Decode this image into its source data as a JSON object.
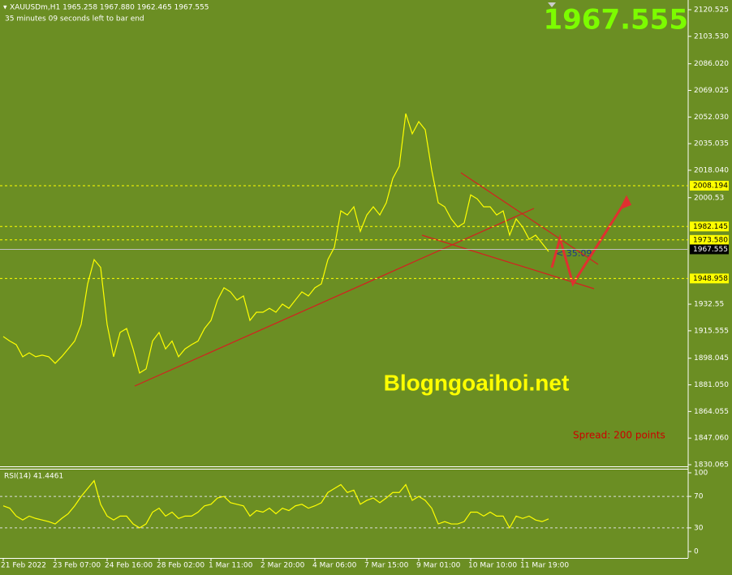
{
  "chart_data": [
    {
      "type": "line",
      "title": "XAUUSDm,H1  1965.258 1967.880 1962.465 1967.555",
      "subtitle": "35 minutes 09 seconds left to bar end",
      "color": "#ffff00",
      "values": [
        1911.9,
        1909,
        1906.7,
        1899,
        1901.5,
        1899,
        1900,
        1899,
        1894.8,
        1899,
        1904,
        1909,
        1919.6,
        1945.5,
        1961,
        1956,
        1919.6,
        1899,
        1914.5,
        1917,
        1904,
        1888.6,
        1891.2,
        1909,
        1914.5,
        1904,
        1909,
        1899,
        1904,
        1906.7,
        1909,
        1917,
        1922.2,
        1935.2,
        1943,
        1940.4,
        1935.2,
        1937.8,
        1922.2,
        1927.4,
        1927.4,
        1929.9,
        1927.4,
        1932.6,
        1929.9,
        1935.2,
        1940.4,
        1937.8,
        1943,
        1945.5,
        1961,
        1968.8,
        1992.1,
        1989.5,
        1994.7,
        1979,
        1989.5,
        1994.7,
        1989.5,
        1997.3,
        2012.8,
        2020.6,
        2054.2,
        2041.3,
        2049.1,
        2043.9,
        2018,
        1997.3,
        1994.7,
        1987,
        1981.8,
        1984.4,
        2002.3,
        1999.8,
        1994.7,
        1994.7,
        1989.5,
        1992.1,
        1976.6,
        1987,
        1981.8,
        1974,
        1976.6,
        1971.4,
        1966.2
      ],
      "ylim": [
        1830.065,
        2120.525
      ],
      "yticks": [
        2120.525,
        {
          "value": 2103.53,
          "label": "2103.530"
        },
        {
          "value": 2086.02,
          "label": "2086.020"
        },
        2069.025,
        {
          "value": 2052.03,
          "label": "2052.030"
        },
        2035.035,
        {
          "value": 2018.04,
          "label": "2018.040"
        },
        2000.53,
        1932.55,
        1915.555,
        1898.045,
        {
          "value": 1881.05,
          "label": "1881.050"
        },
        1864.055,
        {
          "value": 1847.06,
          "label": "1847.060"
        },
        1830.065
      ],
      "levels": [
        2008.194,
        1982.145,
        {
          "value": 1973.58,
          "label": "1973.580"
        },
        1948.958
      ],
      "level_color": "#ffff00",
      "current": 1967.555,
      "timer": "< 35:09",
      "watermark": "Blogngoaihoi.net",
      "spread": "Spread: 200 points"
    },
    {
      "type": "line",
      "title": "RSI(14) 41.4461",
      "color": "#ffff00",
      "values": [
        58,
        55,
        45,
        40,
        45,
        42,
        40,
        38,
        35,
        42,
        48,
        58,
        70,
        80,
        90,
        60,
        45,
        40,
        45,
        45,
        35,
        30,
        35,
        50,
        55,
        45,
        50,
        42,
        45,
        45,
        50,
        58,
        60,
        68,
        70,
        62,
        60,
        58,
        45,
        52,
        50,
        55,
        48,
        55,
        52,
        58,
        60,
        55,
        58,
        62,
        75,
        80,
        85,
        75,
        78,
        60,
        65,
        68,
        62,
        68,
        75,
        75,
        85,
        65,
        70,
        65,
        55,
        35,
        38,
        35,
        35,
        38,
        50,
        50,
        45,
        50,
        45,
        45,
        30,
        45,
        42,
        45,
        40,
        38,
        41.4
      ],
      "ylim": [
        0,
        100
      ],
      "yticks": [
        100,
        70,
        30,
        0
      ],
      "levels": [
        70,
        30
      ],
      "categories": [
        "21 Feb 2022",
        null,
        null,
        null,
        null,
        null,
        null,
        null,
        "23 Feb 07:00",
        null,
        null,
        null,
        null,
        null,
        null,
        null,
        "24 Feb 16:00",
        null,
        null,
        null,
        null,
        null,
        null,
        null,
        "28 Feb 02:00",
        null,
        null,
        null,
        null,
        null,
        null,
        null,
        "1 Mar 11:00",
        null,
        null,
        null,
        null,
        null,
        null,
        null,
        "2 Mar 20:00",
        null,
        null,
        null,
        null,
        null,
        null,
        null,
        "4 Mar 06:00",
        null,
        null,
        null,
        null,
        null,
        null,
        null,
        "7 Mar 15:00",
        null,
        null,
        null,
        null,
        null,
        null,
        null,
        "9 Mar 01:00",
        null,
        null,
        null,
        null,
        null,
        null,
        null,
        "10 Mar 10:00",
        null,
        null,
        null,
        null,
        null,
        null,
        null,
        "11 Mar 19:00",
        null,
        null,
        null,
        null
      ]
    }
  ]
}
